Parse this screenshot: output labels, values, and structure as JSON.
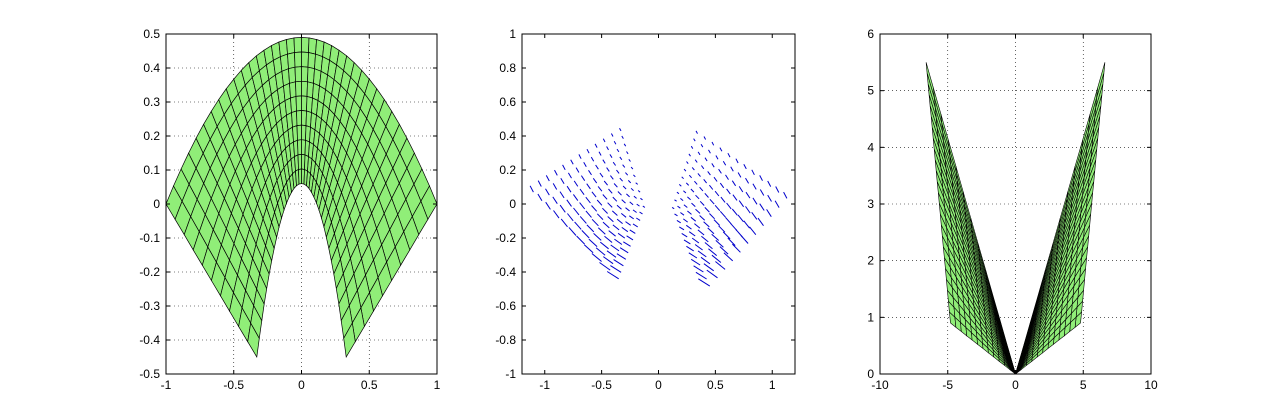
{
  "figure": {
    "background": "#ffffff"
  },
  "chart_data": [
    {
      "type": "surface",
      "title": "",
      "xlabel": "",
      "ylabel": "",
      "xlim": [
        -1,
        1
      ],
      "ylim": [
        -0.5,
        0.5
      ],
      "xticks": [
        "-1",
        "-0.5",
        "0",
        "0.5",
        "1"
      ],
      "yticks": [
        "-0.5",
        "-0.4",
        "-0.3",
        "-0.2",
        "-0.1",
        "0",
        "0.1",
        "0.2",
        "0.3",
        "0.4",
        "0.5"
      ],
      "grid": true,
      "face_color": "#90ee78",
      "edge_color": "#000000",
      "mesh": "diamond mesh bounded by outer arch (0,0.49), inner arch (0,0.06), left corners (-1,0) and (-0.33,-0.45), right corners (1,0) and (0.33,-0.45)",
      "key_points": [
        {
          "x": -1,
          "y": 0
        },
        {
          "x": 0,
          "y": 0.49
        },
        {
          "x": 1,
          "y": 0
        },
        {
          "x": 0.33,
          "y": -0.45
        },
        {
          "x": 0,
          "y": 0.06
        },
        {
          "x": -0.33,
          "y": -0.45
        }
      ]
    },
    {
      "type": "quiver",
      "title": "",
      "xlabel": "",
      "ylabel": "",
      "xlim": [
        -1.2,
        1.2
      ],
      "ylim": [
        -1,
        1
      ],
      "xticks": [
        "-1",
        "-0.5",
        "0",
        "0.5",
        "1"
      ],
      "yticks": [
        "-1",
        "-0.8",
        "-0.6",
        "-0.4",
        "-0.2",
        "0",
        "0.2",
        "0.4",
        "0.6",
        "0.8",
        "1"
      ],
      "grid": false,
      "arrow_color": "#0000cc",
      "field": "two symmetric fans of short arrows; lower boundary from (±1.1,0.07) to (±0.35,-0.44), upper tip near (±0.3,0.43)",
      "key_points": [
        {
          "x": -1.1,
          "y": 0.07
        },
        {
          "x": -0.35,
          "y": -0.44
        },
        {
          "x": -0.3,
          "y": 0.43
        },
        {
          "x": 1.1,
          "y": 0.07
        },
        {
          "x": 0.35,
          "y": -0.44
        },
        {
          "x": 0.3,
          "y": 0.43
        }
      ]
    },
    {
      "type": "surface",
      "title": "",
      "xlabel": "",
      "ylabel": "",
      "xlim": [
        -10,
        10
      ],
      "ylim": [
        0,
        6
      ],
      "xticks": [
        "-10",
        "-5",
        "0",
        "5",
        "10"
      ],
      "yticks": [
        "0",
        "1",
        "2",
        "3",
        "4",
        "5",
        "6"
      ],
      "grid": true,
      "face_color": "#90ee78",
      "edge_color": "#000000",
      "mesh": "V-shaped fans meeting at origin",
      "key_points": [
        {
          "x": -6.6,
          "y": 5.5
        },
        {
          "x": -4.8,
          "y": 0.9
        },
        {
          "x": 0,
          "y": 0
        },
        {
          "x": 4.8,
          "y": 0.9
        },
        {
          "x": 6.6,
          "y": 5.5
        }
      ]
    }
  ]
}
